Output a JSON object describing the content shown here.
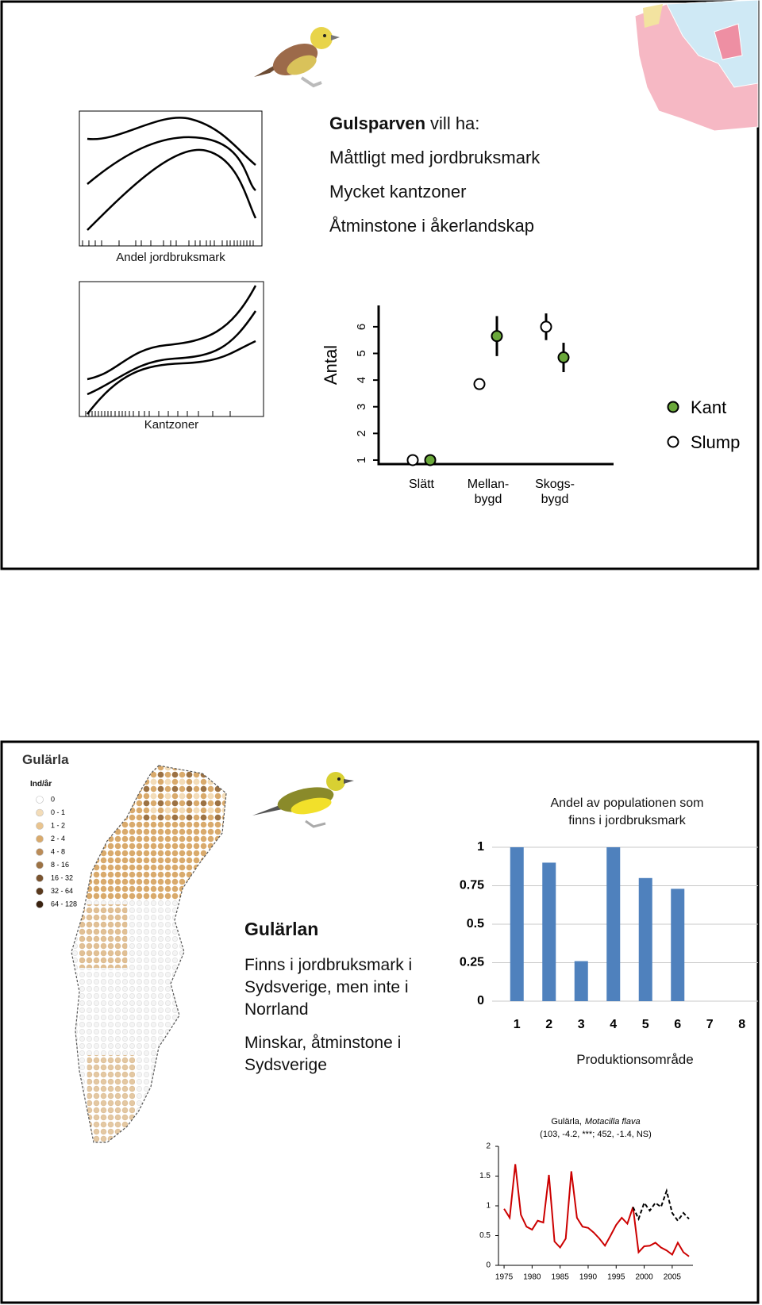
{
  "gulsparven": {
    "heading": [
      "Gulsparven",
      "vill ha:"
    ],
    "points": [
      "Måttligt med jordbruksmark",
      "Mycket kantzoner",
      "Åtminstone i åkerlandskap"
    ],
    "curve_labels": [
      "Andel jordbruksmark",
      "Kantzoner"
    ]
  },
  "gularla": {
    "heading": "Gulärlan",
    "points": [
      "Finns i jordbruksmark i Sydsverige, men inte i Norrland",
      "Minskar, åtminstone i Sydsverige"
    ],
    "map": {
      "title": "Gulärla",
      "legend_title": "Ind/år",
      "legend": [
        {
          "label": "0",
          "color": "#ffffff"
        },
        {
          "label": "0 - 1",
          "color": "#f3dcb8"
        },
        {
          "label": "1 - 2",
          "color": "#e9c48f"
        },
        {
          "label": "2 - 4",
          "color": "#d9aa6c"
        },
        {
          "label": "4 - 8",
          "color": "#bb8c58"
        },
        {
          "label": "8 - 16",
          "color": "#9c7244"
        },
        {
          "label": "16 - 32",
          "color": "#7a5430"
        },
        {
          "label": "32 - 64",
          "color": "#5a3a1e"
        },
        {
          "label": "64 - 128",
          "color": "#3a2210"
        }
      ]
    }
  },
  "chart_data": [
    {
      "type": "dot",
      "y_label": "Antal",
      "categories": [
        "Slätt",
        "Mellan-\nbygd",
        "Skogs-\nbygd"
      ],
      "series": [
        {
          "name": "Kant",
          "color": "#6aa83a",
          "values": [
            1,
            5.65,
            4.85
          ],
          "errors": [
            null,
            0.75,
            0.55
          ]
        },
        {
          "name": "Slump",
          "color": "#ffffff",
          "values": [
            1,
            3.85,
            6
          ],
          "errors": [
            null,
            null,
            0.5
          ]
        }
      ],
      "ylim": [
        0.85,
        6.8
      ],
      "yticks": [
        1,
        2,
        3,
        4,
        5,
        6
      ],
      "legend": "right"
    },
    {
      "type": "bar",
      "title": "Andel av populationen som\nfinns i jordbruksmark",
      "x_label": "Produktionsområde",
      "categories": [
        1,
        2,
        3,
        4,
        5,
        6,
        7,
        8
      ],
      "values": [
        1,
        0.9,
        0.26,
        1,
        0.8,
        0.73,
        null,
        null
      ],
      "color": "#4f81bd",
      "ylim": [
        0,
        1
      ],
      "yticks": [
        0,
        0.25,
        0.5,
        0.75,
        1
      ],
      "grid": true
    },
    {
      "type": "line",
      "title": [
        "Gulärla,",
        "Motacilla flava"
      ],
      "subtitle": "(103, -4.2, ***; 452, -1.4, NS)",
      "x": [
        1975,
        1976,
        1977,
        1978,
        1979,
        1980,
        1981,
        1982,
        1983,
        1984,
        1985,
        1986,
        1987,
        1988,
        1989,
        1990,
        1991,
        1992,
        1993,
        1994,
        1995,
        1996,
        1997,
        1998,
        1999,
        2000,
        2001,
        2002,
        2003,
        2004,
        2005,
        2006,
        2007,
        2008
      ],
      "series": [
        {
          "color": "#cc0000",
          "dash": false,
          "values": [
            0.95,
            0.8,
            1.7,
            0.85,
            0.65,
            0.6,
            0.75,
            0.72,
            1.52,
            0.4,
            0.3,
            0.45,
            1.58,
            0.8,
            0.65,
            0.63,
            0.55,
            0.45,
            0.33,
            0.5,
            0.68,
            0.8,
            0.7,
            0.98,
            0.22,
            0.32,
            0.33,
            0.38,
            0.3,
            0.25,
            0.18,
            0.38,
            0.22,
            0.15
          ]
        },
        {
          "color": "#000000",
          "dash": true,
          "values": [
            null,
            null,
            null,
            null,
            null,
            null,
            null,
            null,
            null,
            null,
            null,
            null,
            null,
            null,
            null,
            null,
            null,
            null,
            null,
            null,
            null,
            null,
            null,
            0.98,
            0.78,
            1.05,
            0.92,
            1.05,
            0.98,
            1.25,
            0.88,
            0.75,
            0.88,
            0.78
          ]
        }
      ],
      "xlim": [
        1974,
        2008.7
      ],
      "xticks": [
        1975,
        1980,
        1985,
        1990,
        1995,
        2000,
        2005
      ],
      "ylim": [
        0,
        2
      ],
      "yticks": [
        0,
        0.5,
        1,
        1.5,
        2
      ]
    }
  ]
}
